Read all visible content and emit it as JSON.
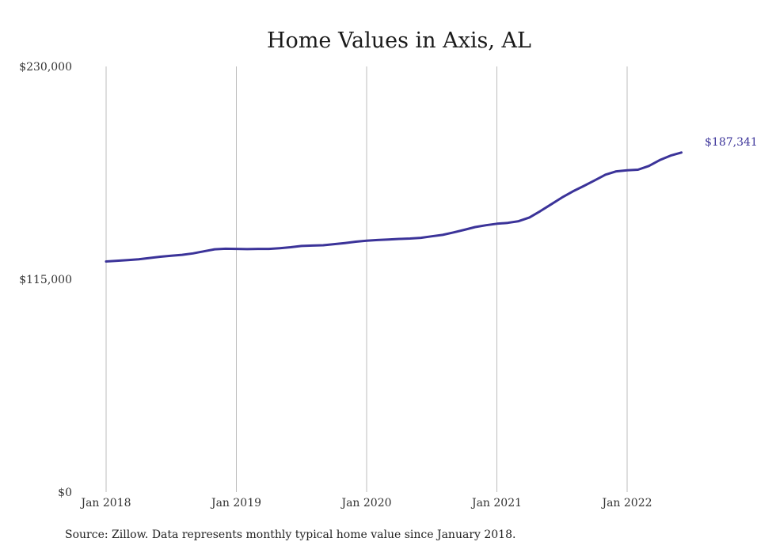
{
  "chart_data": {
    "type": "line",
    "title": "Home Values in Axis, AL",
    "xlabel": "",
    "ylabel": "",
    "x_ticks": [
      "Jan 2018",
      "Jan 2019",
      "Jan 2020",
      "Jan 2021",
      "Jan 2022"
    ],
    "y_ticks": [
      "$0",
      "$115,000",
      "$230,000"
    ],
    "ylim": [
      0,
      230000
    ],
    "grid": "vertical lines at January of each year",
    "legend": "none",
    "series": [
      {
        "color": "#3b3399",
        "x": [
          "2018-01",
          "2018-02",
          "2018-03",
          "2018-04",
          "2018-05",
          "2018-06",
          "2018-07",
          "2018-08",
          "2018-09",
          "2018-10",
          "2018-11",
          "2018-12",
          "2019-01",
          "2019-02",
          "2019-03",
          "2019-04",
          "2019-05",
          "2019-06",
          "2019-07",
          "2019-08",
          "2019-09",
          "2019-10",
          "2019-11",
          "2019-12",
          "2020-01",
          "2020-02",
          "2020-03",
          "2020-04",
          "2020-05",
          "2020-06",
          "2020-07",
          "2020-08",
          "2020-09",
          "2020-10",
          "2020-11",
          "2020-12",
          "2021-01",
          "2021-02",
          "2021-03",
          "2021-04",
          "2021-05",
          "2021-06",
          "2021-07",
          "2021-08",
          "2021-09",
          "2021-10",
          "2021-11",
          "2021-12",
          "2022-01",
          "2022-02",
          "2022-03",
          "2022-04",
          "2022-05",
          "2022-06"
        ],
        "y": [
          124600,
          125000,
          125400,
          125800,
          126500,
          127200,
          127700,
          128200,
          129000,
          130100,
          131200,
          131500,
          131400,
          131300,
          131400,
          131400,
          131800,
          132300,
          133000,
          133200,
          133400,
          134000,
          134600,
          135300,
          135800,
          136200,
          136500,
          136800,
          137000,
          137400,
          138200,
          139000,
          140300,
          141700,
          143200,
          144200,
          145000,
          145500,
          146400,
          148400,
          151800,
          155500,
          159200,
          162500,
          165400,
          168400,
          171500,
          173300,
          173900,
          174200,
          176200,
          179400,
          181800,
          183500
        ]
      }
    ],
    "end_label": "$187,341",
    "source": "Source: Zillow. Data represents monthly typical home value since January 2018."
  }
}
